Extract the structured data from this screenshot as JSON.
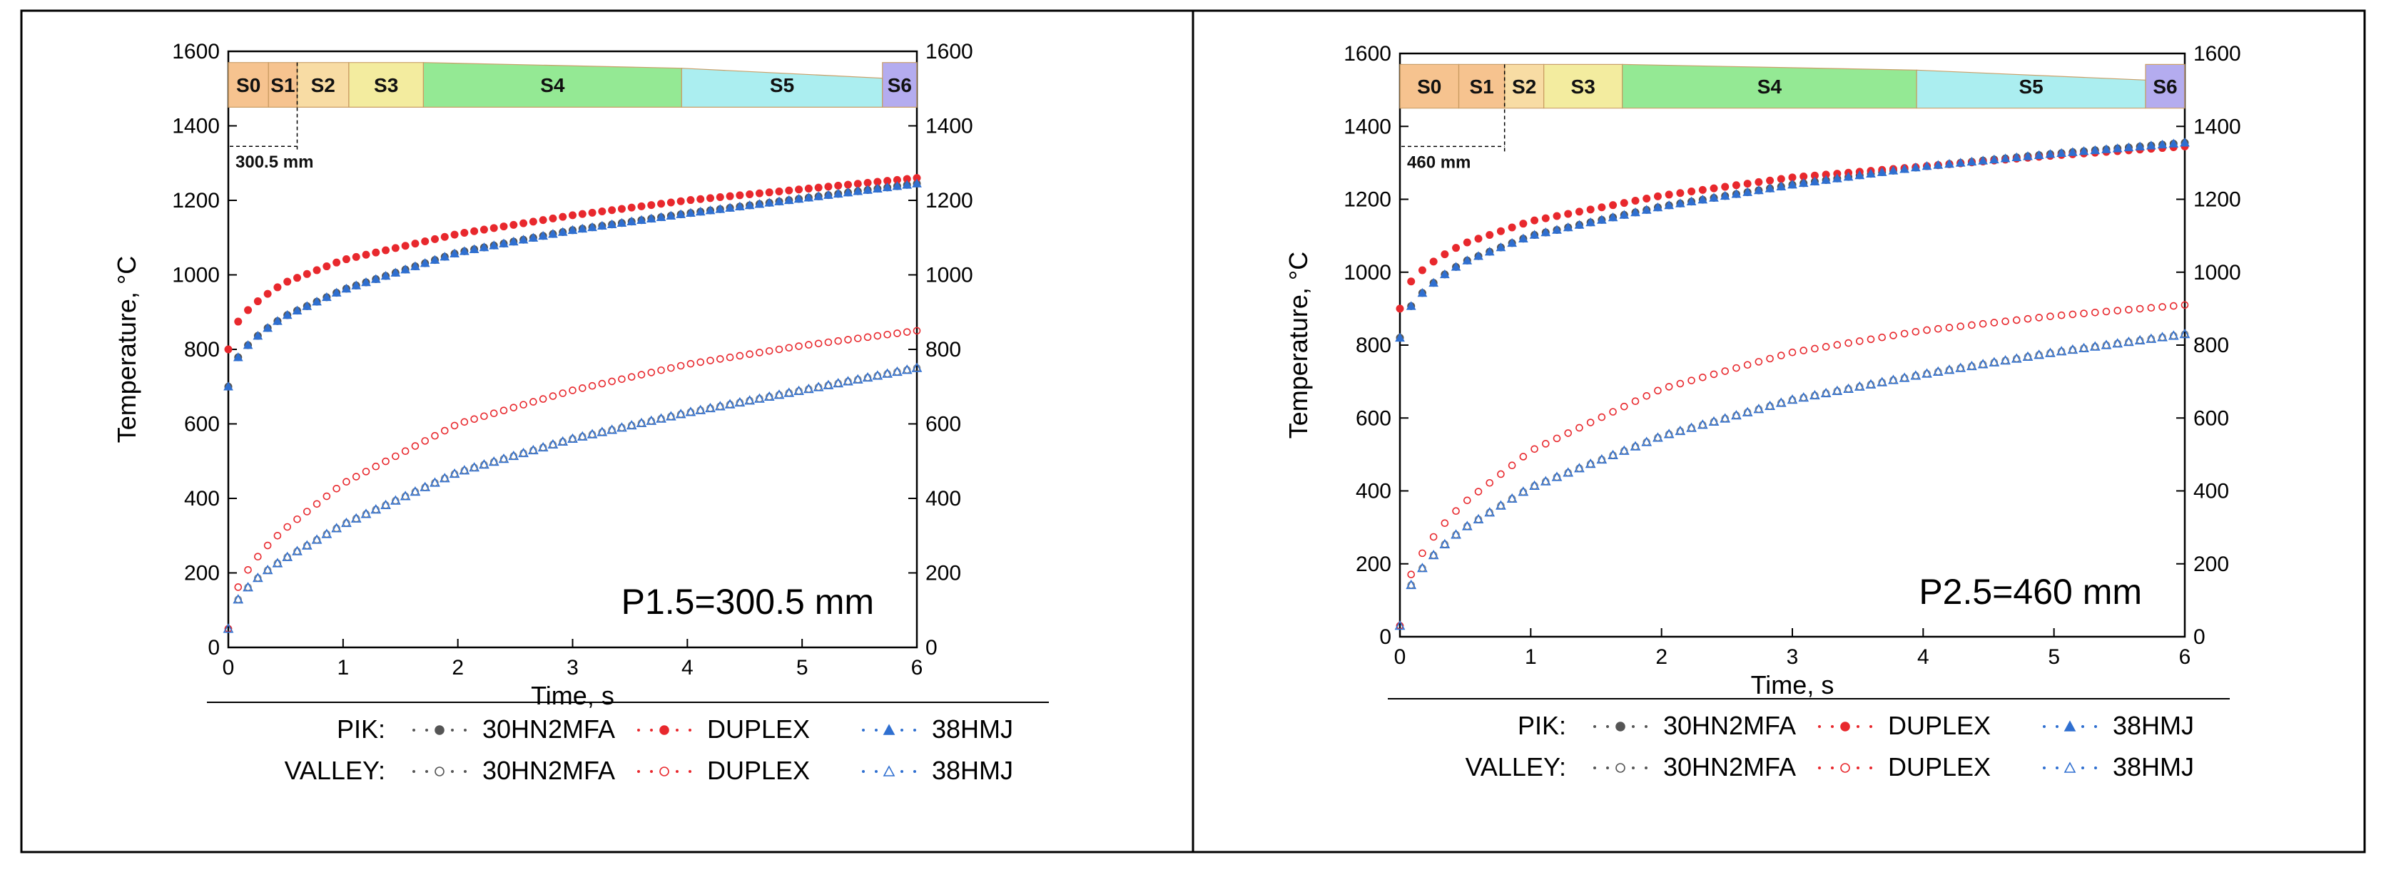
{
  "chart_data": [
    {
      "type": "scatter",
      "title": "",
      "xlabel": "Time, s",
      "ylabel": "Temperature, °C",
      "xlim": [
        0,
        6
      ],
      "ylim": [
        0,
        1600
      ],
      "xticks": [
        "0",
        "1",
        "2",
        "3",
        "4",
        "5",
        "6"
      ],
      "yticks": [
        "0",
        "200",
        "400",
        "600",
        "800",
        "1000",
        "1200",
        "1400",
        "1600"
      ],
      "yticks_right": [
        "0",
        "200",
        "400",
        "600",
        "800",
        "1000",
        "1200",
        "1400",
        "1600"
      ],
      "annotation": "P1.5=300.5 mm",
      "stages": {
        "labels": [
          "S0",
          "S1",
          "S2",
          "S3",
          "S4",
          "S5",
          "S6"
        ],
        "pitch_label": "300.5 mm",
        "colors": [
          "#f6c08a",
          "#f6c08a",
          "#f8dba0",
          "#f3ec9a",
          "#8fe88f",
          "#a7eef0",
          "#b0a8ef"
        ],
        "bounds_s": [
          0,
          0.35,
          0.6,
          1.05,
          1.7,
          3.95,
          5.7,
          6
        ]
      },
      "legend": {
        "rows": [
          {
            "label": "PIK:",
            "entries": [
              "30HN2MFA",
              "DUPLEX",
              "38HMJ"
            ]
          },
          {
            "label": "VALLEY:",
            "entries": [
              "30HN2MFA",
              "DUPLEX",
              "38HMJ"
            ]
          }
        ]
      },
      "series": [
        {
          "name": "PIK: 30HN2MFA",
          "group": "PIK",
          "marker": "filled-circle",
          "color": "#555555",
          "x": [
            0,
            0.5,
            1,
            2,
            3,
            4,
            5,
            6
          ],
          "y": [
            700,
            890,
            960,
            1060,
            1120,
            1165,
            1205,
            1245
          ]
        },
        {
          "name": "PIK: DUPLEX",
          "group": "PIK",
          "marker": "filled-circle",
          "color": "#e8282d",
          "x": [
            0,
            0.5,
            1,
            2,
            3,
            4,
            5,
            6
          ],
          "y": [
            800,
            980,
            1040,
            1110,
            1160,
            1200,
            1230,
            1260
          ]
        },
        {
          "name": "PIK: 38HMJ",
          "group": "PIK",
          "marker": "filled-triangle",
          "color": "#2f6fd0",
          "x": [
            0,
            0.5,
            1,
            2,
            3,
            4,
            5,
            6
          ],
          "y": [
            700,
            890,
            960,
            1060,
            1120,
            1165,
            1205,
            1245
          ]
        },
        {
          "name": "VALLEY: 30HN2MFA",
          "group": "VALLEY",
          "marker": "open-circle",
          "color": "#888888",
          "x": [
            0,
            0.5,
            1,
            2,
            3,
            4,
            5,
            6
          ],
          "y": [
            50,
            240,
            330,
            470,
            560,
            630,
            690,
            750
          ]
        },
        {
          "name": "VALLEY: DUPLEX",
          "group": "VALLEY",
          "marker": "open-circle",
          "color": "#e8282d",
          "x": [
            0,
            0.5,
            1,
            2,
            3,
            4,
            5,
            6
          ],
          "y": [
            50,
            320,
            440,
            600,
            690,
            760,
            810,
            850
          ]
        },
        {
          "name": "VALLEY: 38HMJ",
          "group": "VALLEY",
          "marker": "open-triangle",
          "color": "#2f6fd0",
          "x": [
            0,
            0.5,
            1,
            2,
            3,
            4,
            5,
            6
          ],
          "y": [
            50,
            240,
            330,
            470,
            560,
            630,
            690,
            750
          ]
        }
      ]
    },
    {
      "type": "scatter",
      "title": "",
      "xlabel": "Time, s",
      "ylabel": "Temperature, °C",
      "xlim": [
        0,
        6
      ],
      "ylim": [
        0,
        1600
      ],
      "xticks": [
        "0",
        "1",
        "2",
        "3",
        "4",
        "5",
        "6"
      ],
      "yticks": [
        "0",
        "200",
        "400",
        "600",
        "800",
        "1000",
        "1200",
        "1400",
        "1600"
      ],
      "yticks_right": [
        "0",
        "200",
        "400",
        "600",
        "800",
        "1000",
        "1200",
        "1400",
        "1600"
      ],
      "annotation": "P2.5=460 mm",
      "stages": {
        "labels": [
          "S0",
          "S1",
          "S2",
          "S3",
          "S4",
          "S5",
          "S6"
        ],
        "pitch_label": "460 mm",
        "colors": [
          "#f6c08a",
          "#f6c08a",
          "#f8dba0",
          "#f3ec9a",
          "#8fe88f",
          "#a7eef0",
          "#b0a8ef"
        ],
        "bounds_s": [
          0,
          0.45,
          0.8,
          1.1,
          1.7,
          3.95,
          5.7,
          6
        ]
      },
      "legend": {
        "rows": [
          {
            "label": "PIK:",
            "entries": [
              "30HN2MFA",
              "DUPLEX",
              "38HMJ"
            ]
          },
          {
            "label": "VALLEY:",
            "entries": [
              "30HN2MFA",
              "DUPLEX",
              "38HMJ"
            ]
          }
        ]
      },
      "series": [
        {
          "name": "PIK: 30HN2MFA",
          "group": "PIK",
          "marker": "filled-circle",
          "color": "#555555",
          "x": [
            0,
            0.5,
            1,
            2,
            3,
            4,
            5,
            6
          ],
          "y": [
            820,
            1030,
            1100,
            1180,
            1240,
            1290,
            1325,
            1355
          ]
        },
        {
          "name": "PIK: DUPLEX",
          "group": "PIK",
          "marker": "filled-circle",
          "color": "#e8282d",
          "x": [
            0,
            0.5,
            1,
            2,
            3,
            4,
            5,
            6
          ],
          "y": [
            900,
            1080,
            1140,
            1210,
            1260,
            1290,
            1320,
            1345
          ]
        },
        {
          "name": "PIK: 38HMJ",
          "group": "PIK",
          "marker": "filled-triangle",
          "color": "#2f6fd0",
          "x": [
            0,
            0.5,
            1,
            2,
            3,
            4,
            5,
            6
          ],
          "y": [
            820,
            1030,
            1100,
            1180,
            1240,
            1290,
            1325,
            1355
          ]
        },
        {
          "name": "VALLEY: 30HN2MFA",
          "group": "VALLEY",
          "marker": "open-circle",
          "color": "#888888",
          "x": [
            0,
            0.5,
            1,
            2,
            3,
            4,
            5,
            6
          ],
          "y": [
            30,
            300,
            410,
            550,
            650,
            720,
            780,
            830
          ]
        },
        {
          "name": "VALLEY: DUPLEX",
          "group": "VALLEY",
          "marker": "open-circle",
          "color": "#e8282d",
          "x": [
            0,
            0.5,
            1,
            2,
            3,
            4,
            5,
            6
          ],
          "y": [
            30,
            370,
            510,
            680,
            780,
            840,
            880,
            910
          ]
        },
        {
          "name": "VALLEY: 38HMJ",
          "group": "VALLEY",
          "marker": "open-triangle",
          "color": "#2f6fd0",
          "x": [
            0,
            0.5,
            1,
            2,
            3,
            4,
            5,
            6
          ],
          "y": [
            30,
            300,
            410,
            550,
            650,
            720,
            780,
            830
          ]
        }
      ]
    }
  ]
}
